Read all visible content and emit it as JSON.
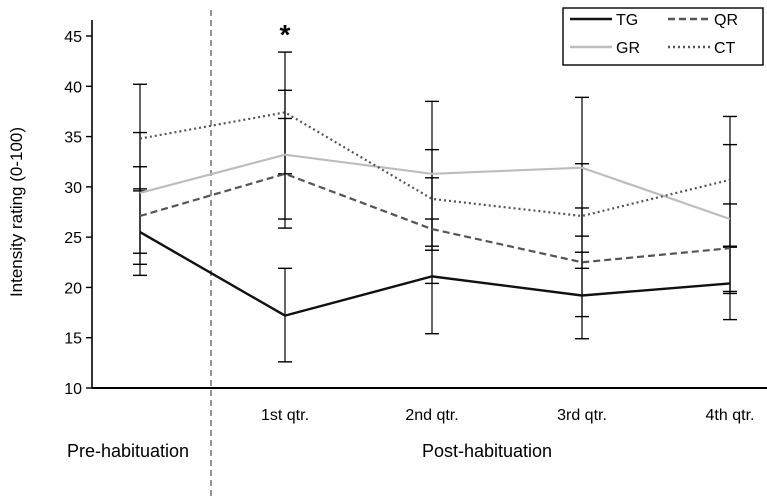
{
  "chart_data": {
    "type": "line",
    "ylabel": "Intensity rating (0-100)",
    "ylim": [
      10,
      46
    ],
    "yticks": [
      10,
      15,
      20,
      25,
      30,
      35,
      40,
      45
    ],
    "categories": [
      "",
      "1st qtr.",
      "2nd qtr.",
      "3rd qtr.",
      "4th qtr."
    ],
    "phase_labels": [
      "Pre-habituation",
      "Post-habituation"
    ],
    "significance_marker": {
      "category_index": 1,
      "text": "*"
    },
    "legend": {
      "position": "top-right"
    },
    "grid": false,
    "series": [
      {
        "name": "TG",
        "color": "#111111",
        "style": "solid",
        "values": [
          25.5,
          17.2,
          21.1,
          19.2,
          20.4
        ],
        "err_low": [
          21.2,
          12.6,
          15.4,
          14.9,
          16.8
        ],
        "err_high": [
          29.8,
          21.9,
          26.8,
          23.5,
          24.0
        ]
      },
      {
        "name": "GR",
        "color": "#bdbdbd",
        "style": "solid",
        "values": [
          29.4,
          33.2,
          31.3,
          31.9,
          26.8
        ],
        "err_low": [
          23.4,
          26.8,
          24.1,
          25.1,
          19.4
        ],
        "err_high": [
          35.4,
          39.6,
          38.5,
          38.9,
          34.2
        ]
      },
      {
        "name": "QR",
        "color": "#555555",
        "style": "dashed",
        "values": [
          27.1,
          31.3,
          25.8,
          22.5,
          23.9
        ],
        "err_low": [
          22.3,
          25.9,
          20.4,
          17.1,
          19.6
        ],
        "err_high": [
          32.0,
          36.8,
          30.9,
          27.9,
          28.3
        ]
      },
      {
        "name": "CT",
        "color": "#555555",
        "style": "dotted",
        "values": [
          34.8,
          37.4,
          28.8,
          27.1,
          30.7
        ],
        "err_low": [
          29.6,
          31.3,
          23.7,
          21.9,
          24.1
        ],
        "err_high": [
          40.2,
          43.4,
          33.7,
          32.3,
          37.0
        ]
      }
    ]
  }
}
